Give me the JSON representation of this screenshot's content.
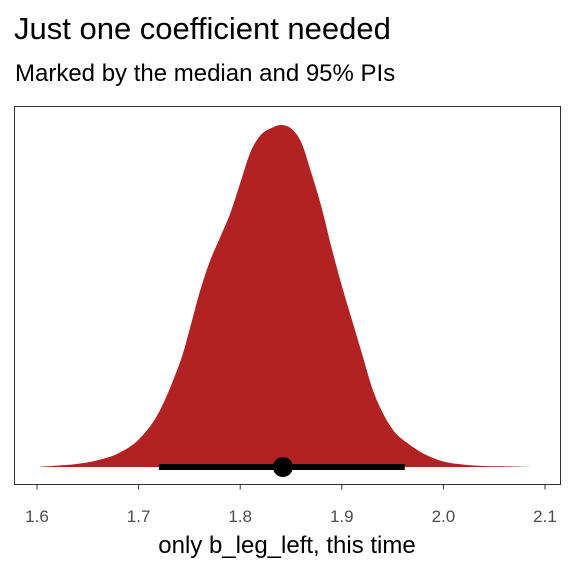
{
  "chart_data": {
    "type": "area",
    "title": "Just one coefficient needed",
    "subtitle": "Marked by the median and 95% PIs",
    "xlabel": "only b_leg_left, this time",
    "ylabel": "",
    "xlim": [
      1.6,
      2.1
    ],
    "x_ticks": [
      1.6,
      1.7,
      1.8,
      1.9,
      2.0,
      2.1
    ],
    "x_tick_labels": [
      "1.6",
      "1.7",
      "1.8",
      "1.9",
      "2.0",
      "2.1"
    ],
    "y_ticks_shown": false,
    "grid": false,
    "fill_color": "#b22222",
    "density": {
      "x": [
        1.603,
        1.62,
        1.64,
        1.66,
        1.68,
        1.7,
        1.72,
        1.74,
        1.75,
        1.76,
        1.77,
        1.78,
        1.79,
        1.8,
        1.81,
        1.82,
        1.83,
        1.84,
        1.85,
        1.86,
        1.87,
        1.88,
        1.89,
        1.9,
        1.91,
        1.92,
        1.93,
        1.94,
        1.95,
        1.96,
        1.98,
        2.0,
        2.02,
        2.04,
        2.06,
        2.087
      ],
      "y": [
        0.001,
        0.004,
        0.009,
        0.02,
        0.04,
        0.08,
        0.16,
        0.3,
        0.4,
        0.51,
        0.6,
        0.67,
        0.74,
        0.83,
        0.92,
        0.97,
        0.99,
        1.0,
        0.99,
        0.95,
        0.86,
        0.76,
        0.64,
        0.53,
        0.43,
        0.33,
        0.23,
        0.16,
        0.11,
        0.08,
        0.04,
        0.016,
        0.007,
        0.003,
        0.002,
        0.0
      ]
    },
    "interval": {
      "median": 1.842,
      "lower": 1.72,
      "upper": 1.962,
      "level": "95%"
    }
  }
}
